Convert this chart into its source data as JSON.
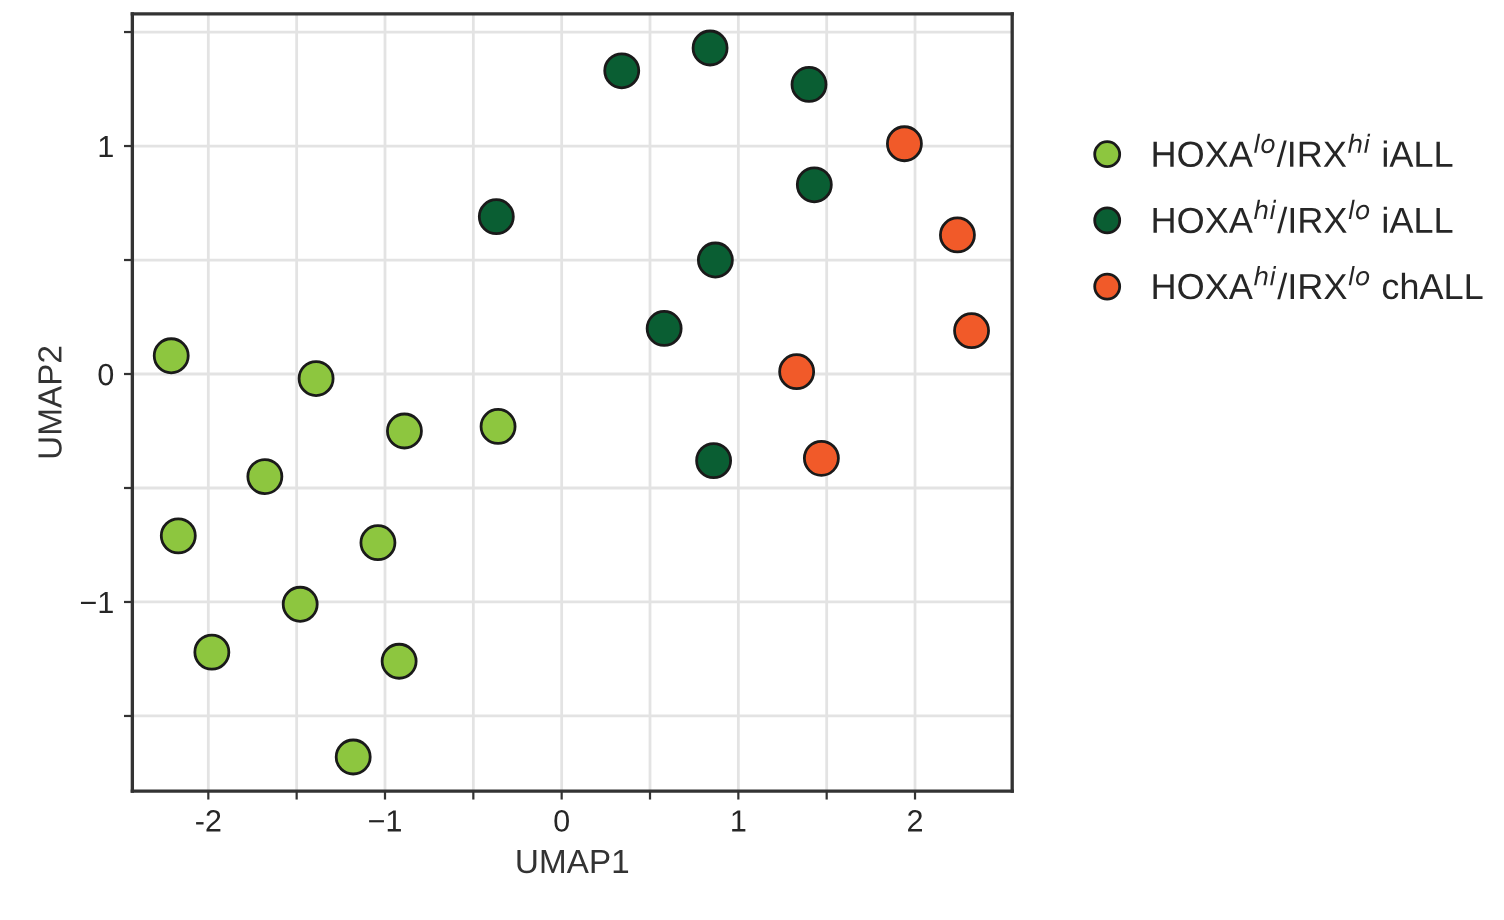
{
  "chart_data": {
    "type": "scatter",
    "xlabel": "UMAP1",
    "ylabel": "UMAP2",
    "xlim": [
      -2.43,
      2.55
    ],
    "ylim": [
      -1.83,
      1.58
    ],
    "xticks": [
      -2,
      {
        "value": -1.5,
        "label": null
      },
      {
        "value": -1,
        "label": "−1"
      },
      {
        "value": -0.5,
        "label": null
      },
      0,
      {
        "value": 0.5,
        "label": null
      },
      1,
      {
        "value": 1.5,
        "label": null
      },
      2
    ],
    "yticks": [
      {
        "value": -1.5,
        "label": null
      },
      {
        "value": -1,
        "label": "−1"
      },
      {
        "value": -0.5,
        "label": null
      },
      0,
      {
        "value": 0.5,
        "label": null
      },
      1,
      {
        "value": 1.5,
        "label": null
      }
    ],
    "grid": true,
    "legend": "right",
    "marker": "circle",
    "series": [
      {
        "name": "HOXA$^{lo}$/IRX$^{hi}$ iALL",
        "color": "#8dc63f",
        "x": [
          -2.21,
          -1.39,
          -0.89,
          -0.36,
          -1.68,
          -2.17,
          -1.04,
          -1.48,
          -1.98,
          -0.92,
          -1.18
        ],
        "values": [
          0.08,
          -0.02,
          -0.25,
          -0.23,
          -0.45,
          -0.71,
          -0.74,
          -1.01,
          -1.22,
          -1.26,
          -1.68
        ]
      },
      {
        "name": "HOXA$^{hi}$/IRX$^{lo}$ iALL",
        "color": "#0a5e33",
        "x": [
          -0.37,
          0.34,
          0.84,
          1.4,
          1.43,
          0.87,
          0.58,
          0.86
        ],
        "values": [
          0.69,
          1.33,
          1.43,
          1.27,
          0.83,
          0.5,
          0.2,
          -0.38
        ]
      },
      {
        "name": "HOXA$^{hi}$/IRX$^{lo}$ chALL",
        "color": "#f15a29",
        "x": [
          1.94,
          2.24,
          2.32,
          1.33,
          1.47
        ],
        "values": [
          1.01,
          0.61,
          0.19,
          0.01,
          -0.37
        ]
      }
    ]
  }
}
